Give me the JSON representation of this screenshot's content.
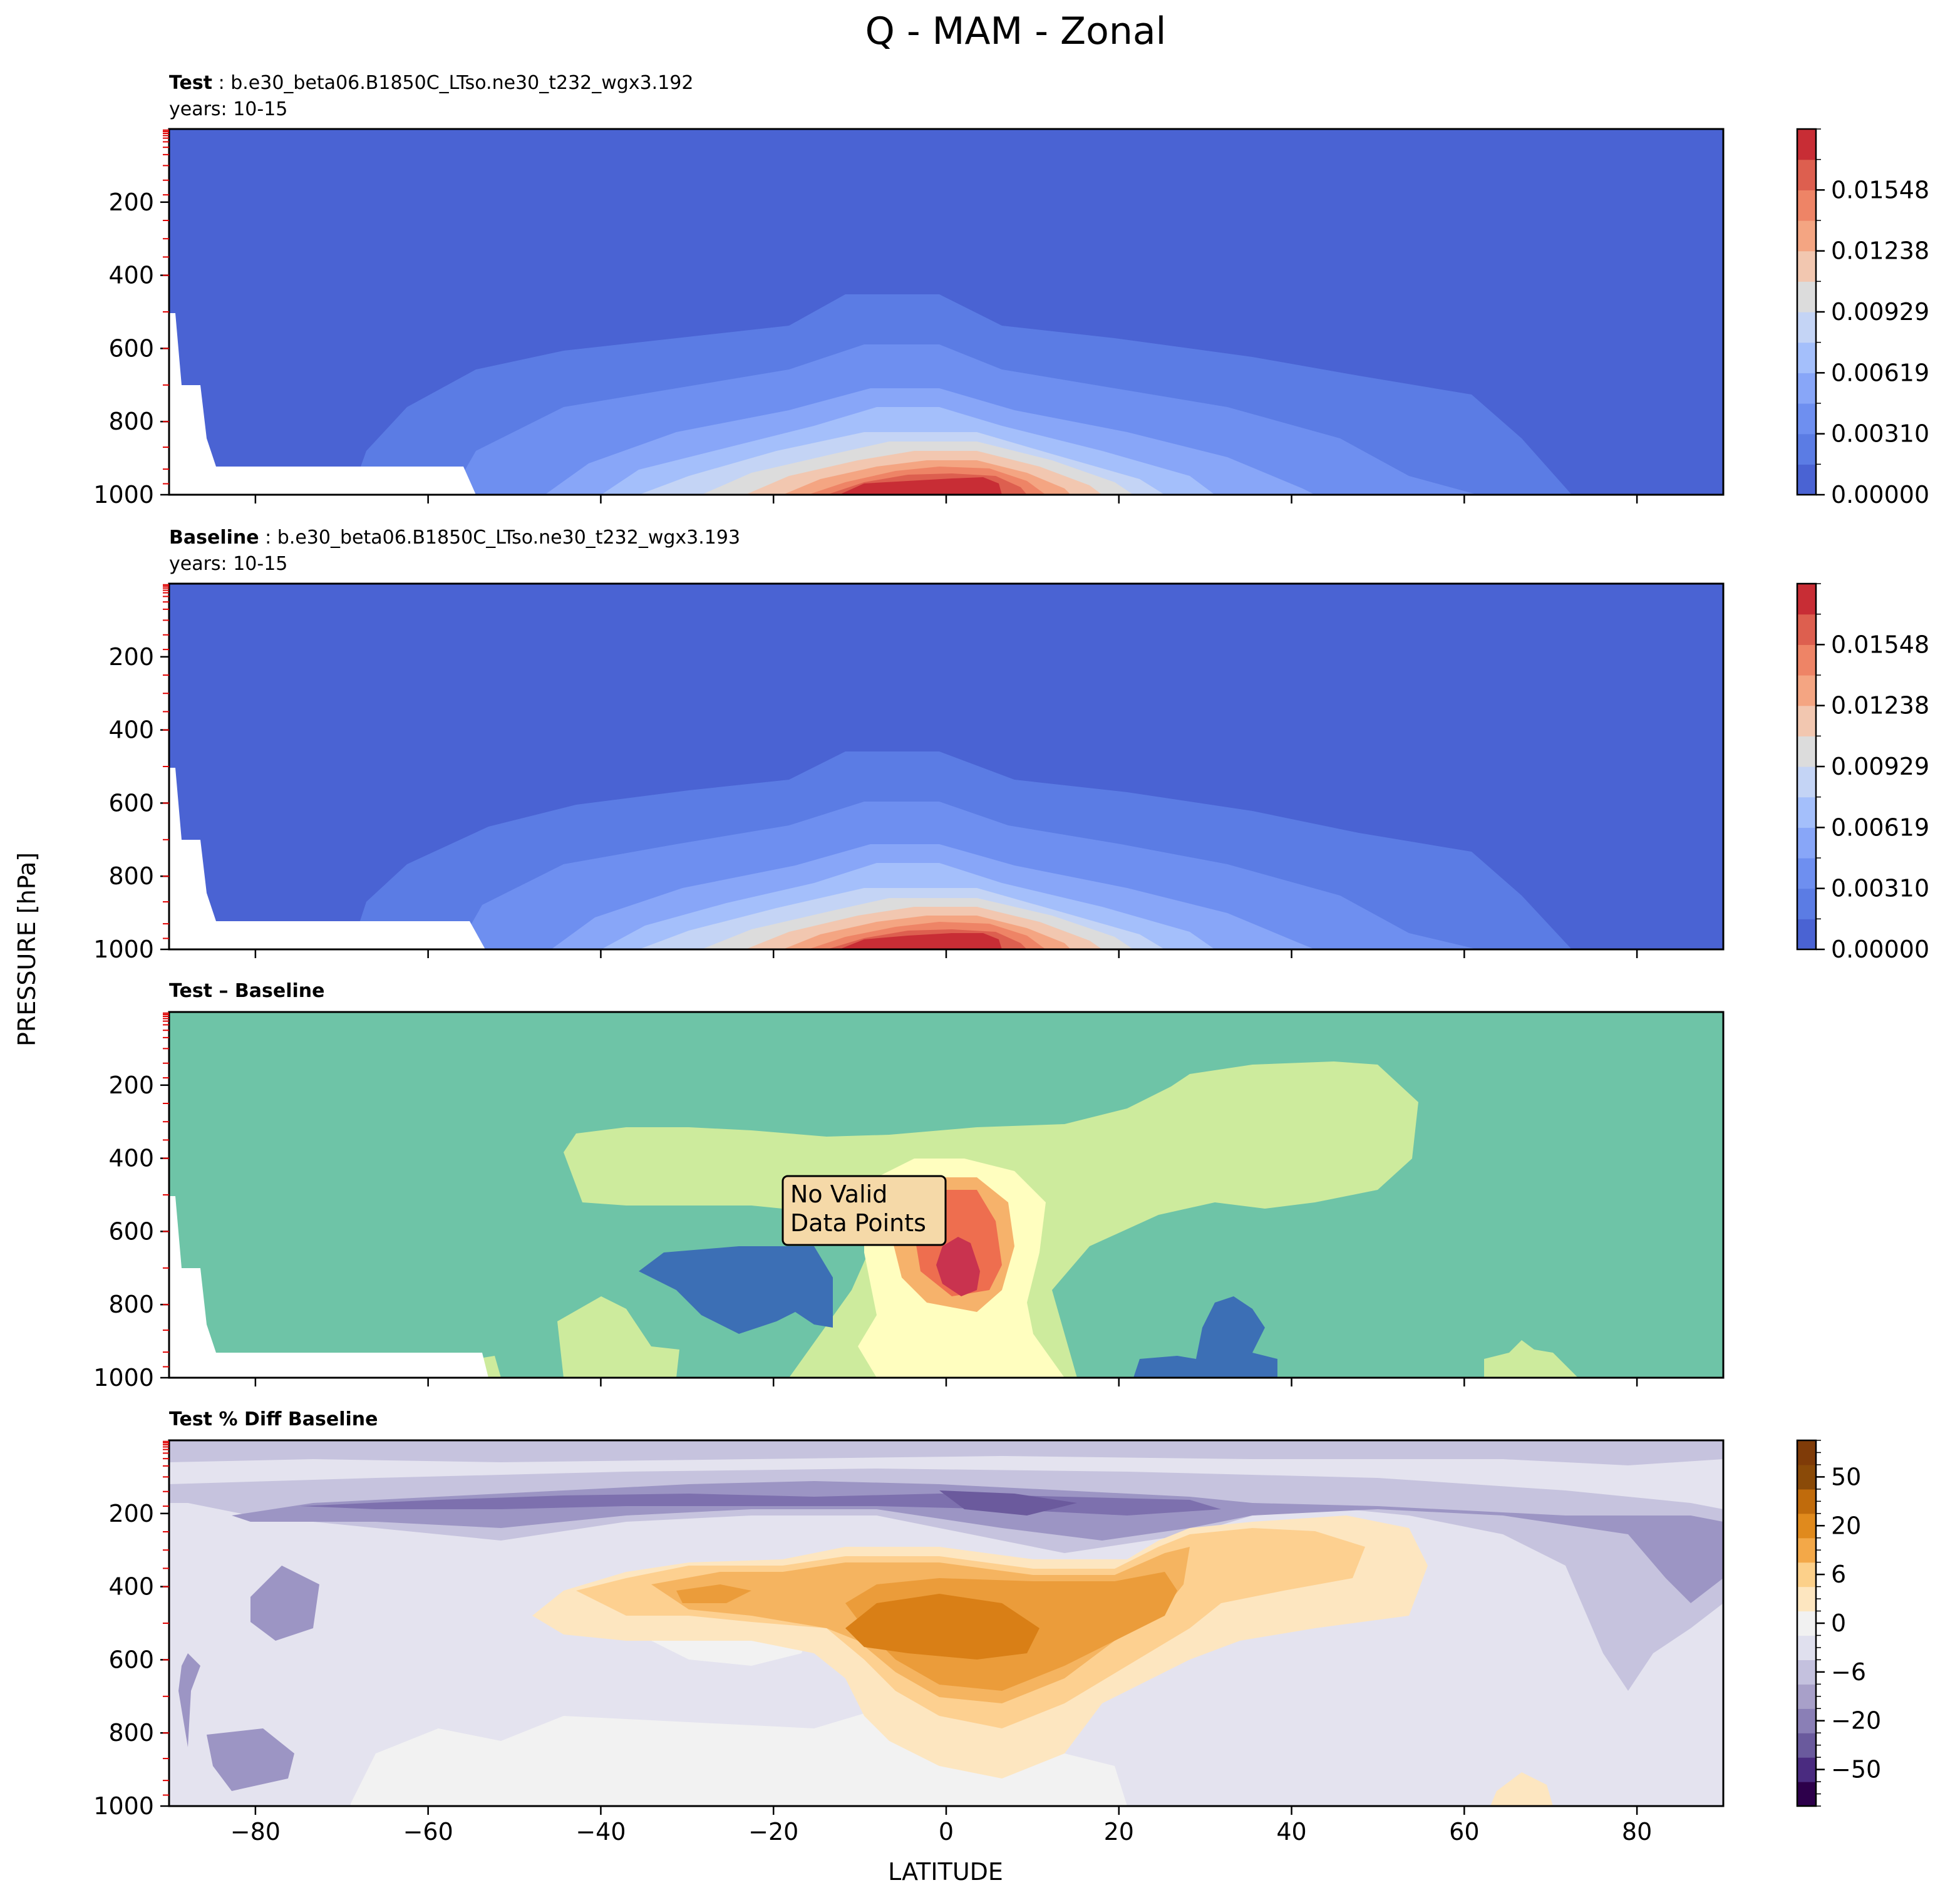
{
  "figure": {
    "title": "Q - MAM - Zonal",
    "ylabel": "PRESSURE [hPa]",
    "xlabel": "LATITUDE",
    "no_data_note": [
      "No Valid",
      "Data Points"
    ]
  },
  "panels": [
    {
      "key": "test",
      "title_bold": "Test",
      "title_rest": " : b.e30_beta06.B1850C_LTso.ne30_t232_wgx3.192",
      "subtitle": "years: 10-15"
    },
    {
      "key": "baseline",
      "title_bold": "Baseline",
      "title_rest": " : b.e30_beta06.B1850C_LTso.ne30_t232_wgx3.193",
      "subtitle": "years: 10-15"
    },
    {
      "key": "diff",
      "title_bold": "Test – Baseline",
      "title_rest": "",
      "subtitle": ""
    },
    {
      "key": "pct",
      "title_bold": "Test % Diff Baseline",
      "title_rest": "",
      "subtitle": ""
    }
  ],
  "axes": {
    "x_ticks": [
      "−80",
      "−60",
      "−40",
      "−20",
      "0",
      "20",
      "40",
      "60",
      "80"
    ],
    "x_tick_values": [
      -80,
      -60,
      -40,
      -20,
      0,
      20,
      40,
      60,
      80
    ],
    "xlim": [
      -90,
      90
    ],
    "y_ticks": [
      "200",
      "400",
      "600",
      "800",
      "1000"
    ],
    "y_tick_values": [
      200,
      400,
      600,
      800,
      1000
    ],
    "ylim": [
      1000,
      0
    ]
  },
  "colorbars": {
    "q": {
      "labels": [
        "0.01548",
        "0.01238",
        "0.00929",
        "0.00619",
        "0.00310",
        "0.00000"
      ],
      "colors": [
        "#4a63d3",
        "#5b7ce4",
        "#6e8ff0",
        "#88a6f8",
        "#a4bffb",
        "#c4d4f5",
        "#dcdcdc",
        "#f2c7b0",
        "#f4a582",
        "#ee8466",
        "#dd5f4f",
        "#c82d35"
      ]
    },
    "pct": {
      "labels": [
        "50",
        "20",
        "6",
        "0",
        "−6",
        "−20",
        "−50"
      ],
      "colors": [
        "#2d004b",
        "#4a2b80",
        "#6a5a9d",
        "#8a7fb6",
        "#a8a0c9",
        "#c4c1de",
        "#e0e0ee",
        "#f1f1f1",
        "#fde6c0",
        "#fcd08a",
        "#f3a848",
        "#e08a1d",
        "#c06b0c",
        "#8a4a08",
        "#7f3b08"
      ]
    }
  },
  "chart_data": [
    {
      "type": "heatmap",
      "title": "Test : b.e30_beta06.B1850C_LTso.ne30_t232_wgx3.192",
      "subtitle": "years: 10-15",
      "xlabel": "LATITUDE",
      "ylabel": "PRESSURE [hPa]",
      "xlim": [
        -90,
        90
      ],
      "ylim": [
        1000,
        0
      ],
      "colorbar_ticks": [
        0.0,
        0.0031,
        0.00619,
        0.00929,
        0.01238,
        0.01548
      ],
      "peak_value_approx": 0.0165,
      "peak_location": {
        "lat": 0,
        "pressure": 1000
      }
    },
    {
      "type": "heatmap",
      "title": "Baseline : b.e30_beta06.B1850C_LTso.ne30_t232_wgx3.193",
      "subtitle": "years: 10-15",
      "xlabel": "LATITUDE",
      "ylabel": "PRESSURE [hPa]",
      "xlim": [
        -90,
        90
      ],
      "ylim": [
        1000,
        0
      ],
      "colorbar_ticks": [
        0.0,
        0.0031,
        0.00619,
        0.00929,
        0.01238,
        0.01548
      ],
      "peak_value_approx": 0.0165,
      "peak_location": {
        "lat": 0,
        "pressure": 1000
      }
    },
    {
      "type": "heatmap",
      "title": "Test – Baseline",
      "xlabel": "LATITUDE",
      "ylabel": "PRESSURE [hPa]",
      "xlim": [
        -90,
        90
      ],
      "ylim": [
        1000,
        0
      ],
      "annotation": "No Valid Data Points"
    },
    {
      "type": "heatmap",
      "title": "Test % Diff Baseline",
      "xlabel": "LATITUDE",
      "ylabel": "PRESSURE [hPa]",
      "xlim": [
        -90,
        90
      ],
      "ylim": [
        1000,
        0
      ],
      "colorbar_ticks": [
        -50,
        -20,
        -6,
        0,
        6,
        20,
        50
      ]
    }
  ]
}
